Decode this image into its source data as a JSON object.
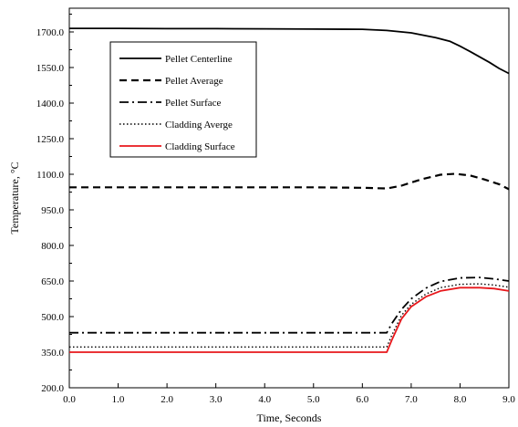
{
  "chart_data": {
    "type": "line",
    "xlabel": "Time, Seconds",
    "ylabel": "Temperature, °C",
    "xlim": [
      0.0,
      9.0
    ],
    "ylim": [
      200.0,
      1800.0
    ],
    "x_ticks": [
      "0.0",
      "1.0",
      "2.0",
      "3.0",
      "4.0",
      "5.0",
      "6.0",
      "7.0",
      "8.0",
      "9.0"
    ],
    "y_ticks": [
      "200.0",
      "350.0",
      "500.0",
      "650.0",
      "800.0",
      "950.0",
      "1100.0",
      "1250.0",
      "1400.0",
      "1550.0",
      "1700.0"
    ],
    "x_tick_values": [
      0,
      1,
      2,
      3,
      4,
      5,
      6,
      7,
      8,
      9
    ],
    "y_tick_values": [
      200,
      350,
      500,
      650,
      800,
      950,
      1100,
      1250,
      1400,
      1550,
      1700
    ],
    "grid": false,
    "legend_position": "upper-left",
    "series": [
      {
        "name": "Pellet Centerline",
        "color": "#000000",
        "style": "solid",
        "x": [
          0,
          1,
          2,
          3,
          4,
          5,
          6,
          6.5,
          7,
          7.5,
          7.8,
          8.0,
          8.2,
          8.4,
          8.6,
          8.8,
          9.0
        ],
        "y": [
          1715,
          1715,
          1714,
          1714,
          1713,
          1712,
          1711,
          1706,
          1696,
          1676,
          1660,
          1640,
          1618,
          1595,
          1572,
          1546,
          1525
        ]
      },
      {
        "name": "Pellet Average",
        "color": "#000000",
        "style": "dashed",
        "x": [
          0,
          1,
          2,
          3,
          4,
          5,
          6,
          6.5,
          6.8,
          7.2,
          7.6,
          7.9,
          8.2,
          8.5,
          8.8,
          9.0
        ],
        "y": [
          1045,
          1045,
          1045,
          1045,
          1045,
          1045,
          1043,
          1040,
          1052,
          1078,
          1098,
          1102,
          1095,
          1078,
          1058,
          1037
        ]
      },
      {
        "name": "Pellet Surface",
        "color": "#000000",
        "style": "dashdot",
        "x": [
          0,
          1,
          2,
          3,
          4,
          5,
          6,
          6.5,
          6.6,
          6.8,
          7.0,
          7.3,
          7.6,
          8.0,
          8.4,
          8.7,
          9.0
        ],
        "y": [
          432,
          432,
          432,
          432,
          432,
          432,
          432,
          432,
          470,
          530,
          575,
          620,
          648,
          663,
          665,
          659,
          650
        ]
      },
      {
        "name": "Cladding Averge",
        "color": "#000000",
        "style": "dotted",
        "x": [
          0,
          1,
          2,
          3,
          4,
          5,
          6,
          6.5,
          6.6,
          6.8,
          7.0,
          7.3,
          7.6,
          8.0,
          8.4,
          8.7,
          9.0
        ],
        "y": [
          372,
          372,
          372,
          372,
          372,
          372,
          372,
          372,
          420,
          505,
          552,
          595,
          622,
          636,
          638,
          633,
          624
        ]
      },
      {
        "name": "Cladding Surface",
        "color": "#e8171b",
        "style": "solid",
        "x": [
          0,
          1,
          2,
          3,
          4,
          5,
          6,
          6.5,
          6.6,
          6.8,
          7.0,
          7.3,
          7.6,
          8.0,
          8.4,
          8.7,
          9.0
        ],
        "y": [
          350,
          350,
          350,
          350,
          350,
          350,
          350,
          350,
          400,
          490,
          542,
          584,
          608,
          622,
          622,
          618,
          608
        ]
      }
    ]
  }
}
